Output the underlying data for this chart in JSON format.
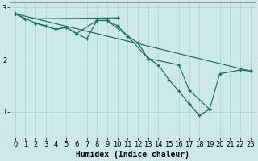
{
  "bg_color": "#cce8e8",
  "line_color": "#1a6e64",
  "grid_color": "#aad0d0",
  "xlabel": "Humidex (Indice chaleur)",
  "xlabel_fontsize": 7,
  "tick_fontsize": 6,
  "xlim": [
    -0.5,
    23.5
  ],
  "ylim": [
    0.5,
    3.1
  ],
  "yticks": [
    1,
    2,
    3
  ],
  "line1": {
    "x": [
      0,
      1,
      10
    ],
    "y": [
      2.88,
      2.78,
      2.8
    ]
  },
  "line2": {
    "x": [
      0,
      2,
      3,
      4,
      5,
      6,
      7,
      8,
      9,
      10,
      11,
      12,
      13,
      14,
      15,
      16,
      17,
      18,
      19
    ],
    "y": [
      2.88,
      2.7,
      2.65,
      2.58,
      2.62,
      2.5,
      2.4,
      2.75,
      2.75,
      2.65,
      2.45,
      2.32,
      2.02,
      1.9,
      1.62,
      1.4,
      1.15,
      0.93,
      1.05
    ]
  },
  "line3": {
    "x": [
      2,
      4,
      5,
      6,
      8,
      9,
      11,
      13,
      16,
      17,
      19,
      20,
      22,
      23
    ],
    "y": [
      2.7,
      2.58,
      2.62,
      2.5,
      2.75,
      2.75,
      2.45,
      2.02,
      1.9,
      1.42,
      1.05,
      1.73,
      1.8,
      1.78
    ]
  },
  "line4": {
    "x": [
      0,
      23
    ],
    "y": [
      2.88,
      1.78
    ]
  }
}
